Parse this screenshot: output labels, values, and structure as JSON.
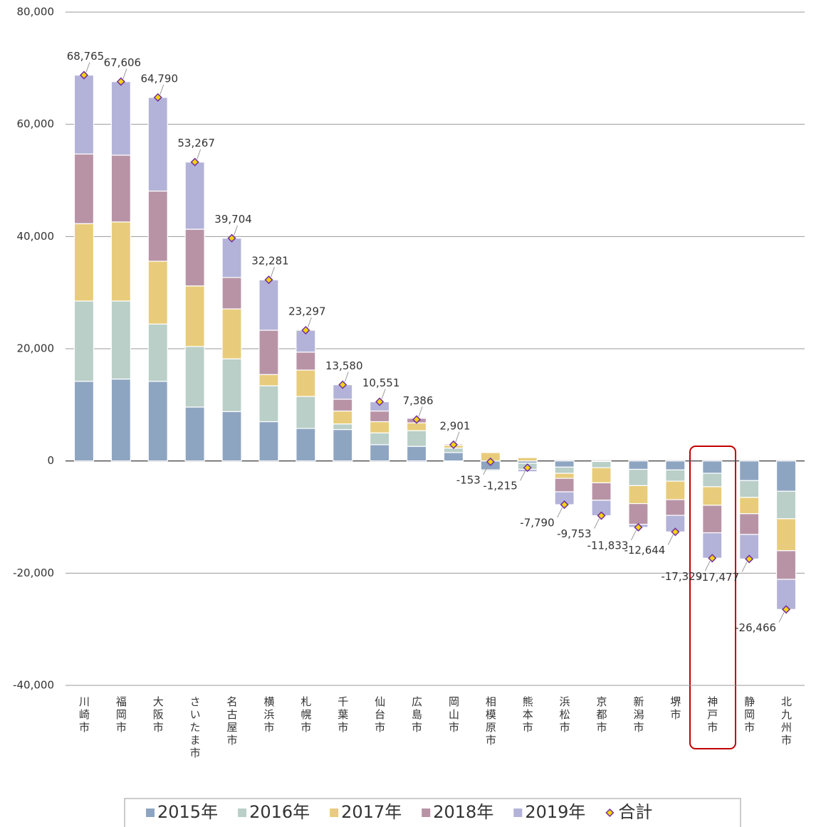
{
  "chart_data": {
    "type": "bar",
    "stacked": true,
    "grid": true,
    "categories": [
      "川崎市",
      "福岡市",
      "大阪市",
      "さいたま市",
      "名古屋市",
      "横浜市",
      "札幌市",
      "千葉市",
      "仙台市",
      "広島市",
      "岡山市",
      "相模原市",
      "熊本市",
      "浜松市",
      "京都市",
      "新潟市",
      "堺市",
      "神戸市",
      "静岡市",
      "北九州市"
    ],
    "series": [
      {
        "name": "2015年",
        "color": "#8ea5c2",
        "values": [
          14200,
          14600,
          14200,
          9600,
          8800,
          7000,
          5800,
          5600,
          2900,
          2600,
          1500,
          -1600,
          -400,
          -1100,
          -100,
          -1500,
          -1600,
          -2200,
          -3500,
          -5400
        ]
      },
      {
        "name": "2016年",
        "color": "#b9cfc8",
        "values": [
          14300,
          13900,
          10200,
          10800,
          9400,
          6400,
          5700,
          1000,
          2100,
          2800,
          800,
          -200,
          -1100,
          -1100,
          -1100,
          -2900,
          -2000,
          -2400,
          -3000,
          -4900
        ]
      },
      {
        "name": "2017年",
        "color": "#e8cc7b",
        "values": [
          13800,
          14100,
          11200,
          10800,
          8900,
          2000,
          4700,
          2300,
          2000,
          1400,
          500,
          1500,
          600,
          -900,
          -2700,
          -3200,
          -3300,
          -3300,
          -2900,
          -5700
        ]
      },
      {
        "name": "2018年",
        "color": "#b893a6",
        "values": [
          12400,
          11900,
          12500,
          10100,
          5600,
          7900,
          3200,
          2100,
          1900,
          800,
          200,
          100,
          100,
          -2400,
          -3100,
          -3700,
          -2800,
          -4900,
          -3700,
          -5100
        ]
      },
      {
        "name": "2019年",
        "color": "#b3b3d9",
        "values": [
          14065,
          13106,
          16690,
          11967,
          7004,
          8981,
          3897,
          2580,
          1651,
          -214,
          -99,
          47,
          -415,
          -2290,
          -2753,
          -533,
          -2944,
          -4529,
          -4377,
          -5366
        ]
      }
    ],
    "total": {
      "name": "合計",
      "color": "#f5d20f",
      "edge": "#7030a0",
      "values": [
        68765,
        67606,
        64790,
        53267,
        39704,
        32281,
        23297,
        13580,
        10551,
        7386,
        2901,
        -153,
        -1215,
        -7790,
        -9753,
        -11833,
        -12644,
        -17329,
        -17477,
        -26466
      ],
      "value_labels": [
        "68,765",
        "67,606",
        "64,790",
        "53,267",
        "39,704",
        "32,281",
        "23,297",
        "13,580",
        "10,551",
        "7,386",
        "2,901",
        "-153",
        "-1,215",
        "-7,790",
        "-9,753",
        "-11,833",
        "-12,644",
        "-17,329",
        "-17,477",
        "-26,466"
      ]
    },
    "ylim": [
      -40000,
      80000
    ],
    "yticks": [
      {
        "value": -40000,
        "label": "-40,000"
      },
      {
        "value": -20000,
        "label": "-20,000"
      },
      0,
      {
        "value": 20000,
        "label": "20,000"
      },
      {
        "value": 40000,
        "label": "40,000"
      },
      {
        "value": 60000,
        "label": "60,000"
      },
      {
        "value": 80000,
        "label": "80,000"
      }
    ]
  }
}
